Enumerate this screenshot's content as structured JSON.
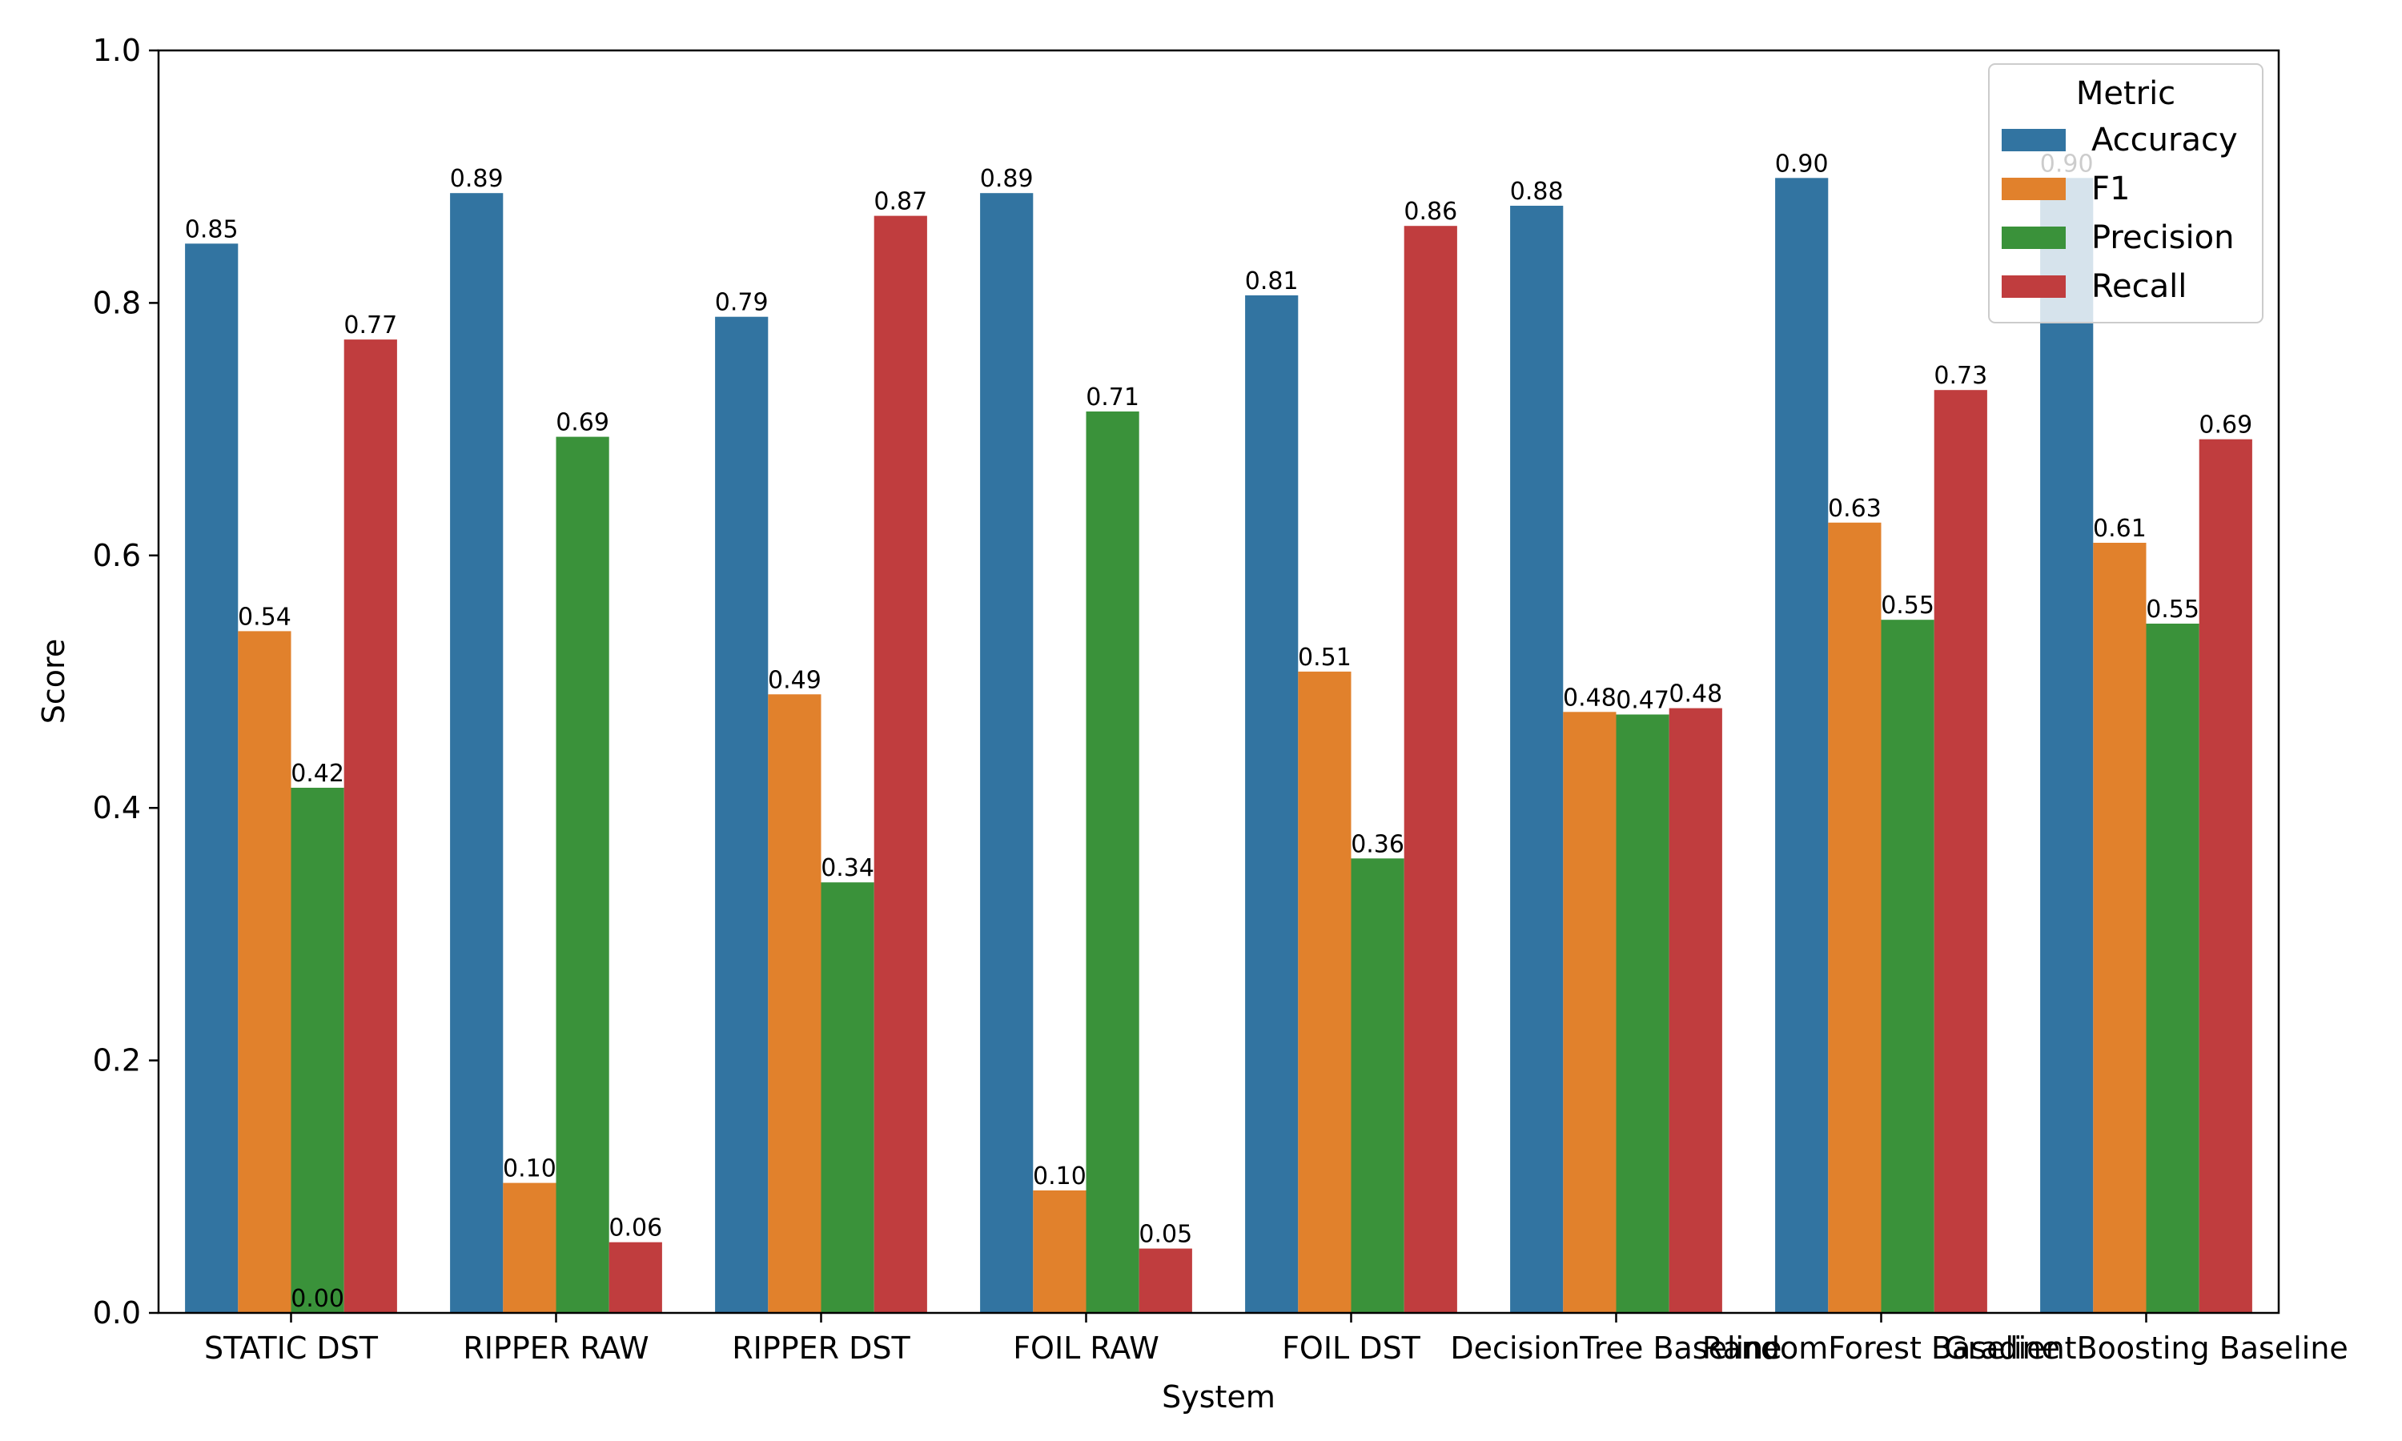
{
  "chart_data": {
    "type": "bar",
    "xlabel": "System",
    "ylabel": "Score",
    "ylim": [
      0,
      1.0
    ],
    "yticks": [
      "0.0",
      "0.2",
      "0.4",
      "0.6",
      "0.8",
      "1.0"
    ],
    "legend": {
      "title": "Metric",
      "position": "top-right"
    },
    "categories": [
      "STATIC DST",
      "RIPPER RAW",
      "RIPPER DST",
      "FOIL RAW",
      "FOIL DST",
      "DecisionTree Baseline",
      "RandomForest Baseline",
      "GradientBoosting Baseline"
    ],
    "series": [
      {
        "name": "Accuracy",
        "color": "#3274a1",
        "values": [
          0.847,
          0.887,
          0.789,
          0.887,
          0.806,
          0.877,
          0.899,
          0.899
        ],
        "labels": [
          "0.85",
          "0.89",
          "0.79",
          "0.89",
          "0.81",
          "0.88",
          "0.90",
          "0.90"
        ]
      },
      {
        "name": "F1",
        "color": "#e1812c",
        "values": [
          0.54,
          0.103,
          0.49,
          0.097,
          0.508,
          0.476,
          0.626,
          0.61
        ],
        "labels": [
          "0.54",
          "0.10",
          "0.49",
          "0.10",
          "0.51",
          "0.48",
          "0.63",
          "0.61"
        ]
      },
      {
        "name": "Precision",
        "color": "#3a923a",
        "values": [
          0.416,
          0.694,
          0.341,
          0.714,
          0.36,
          0.474,
          0.549,
          0.546
        ],
        "labels": [
          "0.42",
          "0.69",
          "0.34",
          "0.71",
          "0.36",
          "0.47",
          "0.55",
          "0.55"
        ],
        "extra_labels": [
          {
            "category_index": 0,
            "value": 0.0,
            "label": "0.00"
          }
        ]
      },
      {
        "name": "Recall",
        "color": "#c03d3e",
        "values": [
          0.771,
          0.056,
          0.869,
          0.051,
          0.861,
          0.479,
          0.731,
          0.692
        ],
        "labels": [
          "0.77",
          "0.06",
          "0.87",
          "0.05",
          "0.86",
          "0.48",
          "0.73",
          "0.69"
        ]
      }
    ]
  }
}
